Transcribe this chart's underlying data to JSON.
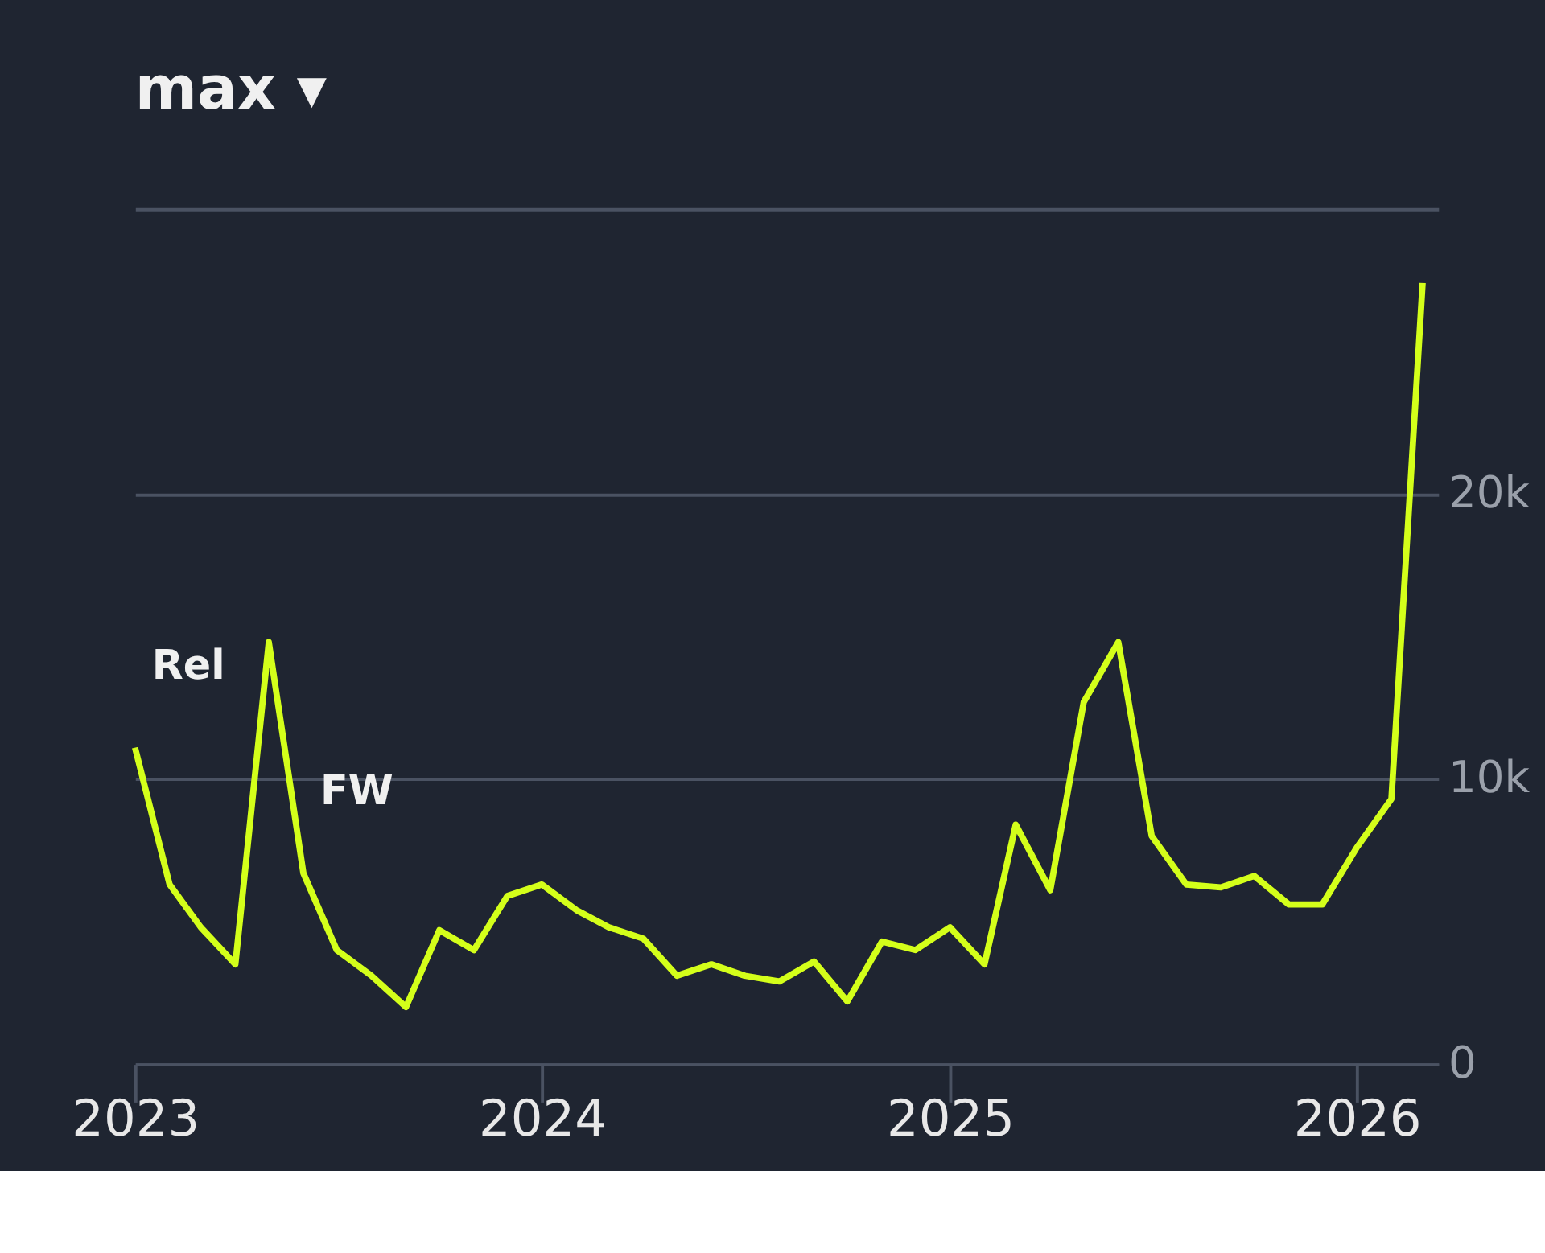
{
  "chart_data": {
    "type": "line",
    "x": [
      "2023-01",
      "2023-02",
      "2023-03",
      "2023-04",
      "2023-05",
      "2023-06",
      "2023-07",
      "2023-08",
      "2023-09",
      "2023-10",
      "2023-11",
      "2023-12",
      "2024-01",
      "2024-02",
      "2024-03",
      "2024-04",
      "2024-05",
      "2024-06",
      "2024-07",
      "2024-08",
      "2024-09",
      "2024-10",
      "2024-11",
      "2024-12",
      "2025-01",
      "2025-02",
      "2025-03",
      "2025-04",
      "2025-05",
      "2025-06",
      "2025-07",
      "2025-08",
      "2025-09",
      "2025-10",
      "2025-11",
      "2025-12",
      "2026-01",
      "2026-02",
      "2026-03"
    ],
    "series": [
      {
        "color": "#d4ff1a",
        "values": [
          11100,
          6300,
          4800,
          3500,
          14800,
          6700,
          4000,
          3100,
          2000,
          4700,
          4000,
          5900,
          6300,
          5400,
          4800,
          4400,
          3100,
          3500,
          3100,
          2900,
          3600,
          2200,
          4300,
          4000,
          4800,
          3500,
          8400,
          6100,
          12700,
          14800,
          8000,
          6300,
          6200,
          6600,
          5600,
          5600,
          7600,
          9300,
          27400
        ]
      }
    ],
    "xlim": [
      "2023-01-01",
      "2026-03-15"
    ],
    "xticks": [
      {
        "value": "2023",
        "label": "2023"
      },
      {
        "value": "2024",
        "label": "2024"
      },
      {
        "value": "2025",
        "label": "2025"
      },
      {
        "value": "2026",
        "label": "2026"
      }
    ],
    "ylim": [
      0,
      30000
    ],
    "yticks": [
      {
        "value": 0,
        "label": "0"
      },
      {
        "value": 10000,
        "label": "10k"
      },
      {
        "value": 20000,
        "label": "20k"
      },
      {
        "value": 30000,
        "label": null
      }
    ],
    "grid": "y",
    "marker": "none",
    "line_style": "solid",
    "annotations": [
      "max ▾",
      {
        "text": "Rel",
        "x": "2023-01",
        "y": 11100
      },
      {
        "text": "FW",
        "x": "2023-06",
        "y": 6700
      }
    ]
  }
}
